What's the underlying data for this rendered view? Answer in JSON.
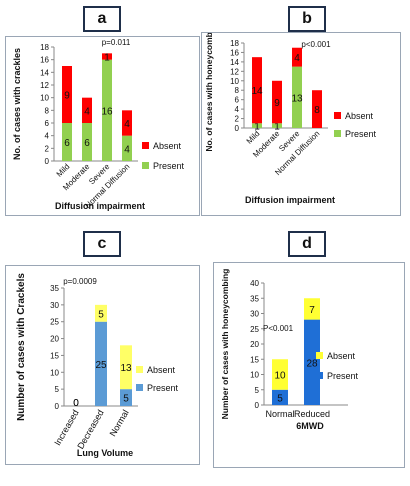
{
  "panels": [
    {
      "letter": "a"
    },
    {
      "letter": "b"
    },
    {
      "letter": "c"
    },
    {
      "letter": "d"
    }
  ],
  "chart_data": [
    {
      "id": "a",
      "type": "bar",
      "stacked": true,
      "annotation": "p=0.011",
      "xlabel": "Diffusion impairment",
      "ylabel": "No. of cases with crackles",
      "ylim": [
        0,
        18
      ],
      "yticks": [
        0,
        2,
        4,
        6,
        8,
        10,
        12,
        14,
        16,
        18
      ],
      "categories": [
        "Mild",
        "Moderate",
        "Severe",
        "Normal Diffusion"
      ],
      "series": [
        {
          "name": "Present",
          "color": "#92d050",
          "values": [
            6,
            6,
            16,
            4
          ]
        },
        {
          "name": "Absent",
          "color": "#ff0000",
          "values": [
            9,
            4,
            1,
            4
          ]
        }
      ],
      "legend": "right",
      "grid": false
    },
    {
      "id": "b",
      "type": "bar",
      "stacked": true,
      "annotation": "p<0.001",
      "xlabel": "Diffusion impairment",
      "ylabel": "No. of cases with honeycombing",
      "ylim": [
        0,
        18
      ],
      "yticks": [
        0,
        2,
        4,
        6,
        8,
        10,
        12,
        14,
        16,
        18
      ],
      "categories": [
        "Mild",
        "Moderate",
        "Severe",
        "Normal Diffusion"
      ],
      "series": [
        {
          "name": "Present",
          "color": "#92d050",
          "values": [
            1,
            1,
            13,
            0
          ]
        },
        {
          "name": "Absent",
          "color": "#ff0000",
          "values": [
            14,
            9,
            4,
            8
          ]
        }
      ],
      "legend": "right",
      "grid": false
    },
    {
      "id": "c",
      "type": "bar",
      "stacked": true,
      "annotation": "p=0.0009",
      "xlabel": "Lung Volume",
      "ylabel": "Number of cases with Crackels",
      "ylim": [
        0,
        35
      ],
      "yticks": [
        0,
        5,
        10,
        15,
        20,
        25,
        30,
        35
      ],
      "categories": [
        "Increased",
        "Decreased",
        "Normal"
      ],
      "series": [
        {
          "name": "Present",
          "color": "#5b9bd5",
          "values": [
            0,
            25,
            5
          ]
        },
        {
          "name": "Absent",
          "color": "#ffff66",
          "values": [
            0,
            5,
            13
          ]
        }
      ],
      "legend": "right",
      "grid": false
    },
    {
      "id": "d",
      "type": "bar",
      "stacked": true,
      "annotation": "P<0.001",
      "xlabel": "6MWD",
      "ylabel": "Number of cases with honeycombing",
      "ylim": [
        0,
        40
      ],
      "yticks": [
        0,
        5,
        10,
        15,
        20,
        25,
        30,
        35,
        40
      ],
      "categories": [
        "Normal",
        "Reduced"
      ],
      "series": [
        {
          "name": "Present",
          "color": "#1f6fd6",
          "values": [
            5,
            28
          ]
        },
        {
          "name": "Absent",
          "color": "#ffff33",
          "values": [
            10,
            7
          ]
        }
      ],
      "legend": "right",
      "grid": false
    }
  ]
}
